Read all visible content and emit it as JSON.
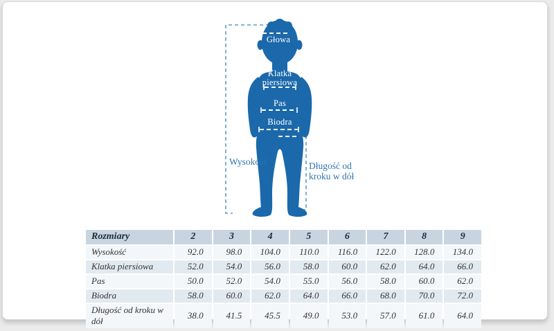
{
  "diagram": {
    "figure_color": "#1b69ab",
    "dash_blue": "#5b9bcd",
    "label_blue": "#2e75ad",
    "body_labels": {
      "head": "Głowa",
      "chest_line1": "Klatka",
      "chest_line2": "piersiowa",
      "waist": "Pas",
      "hips": "Biodra"
    },
    "measure_labels": {
      "height": "Wysokość",
      "inseam_line1": "Długość od",
      "inseam_line2": "kroku w dół"
    }
  },
  "table": {
    "header_label": "Rozmiary",
    "sizes": [
      "2",
      "3",
      "4",
      "5",
      "6",
      "7",
      "8",
      "9"
    ],
    "rows": [
      {
        "label": "Wysokość",
        "values": [
          "92.0",
          "98.0",
          "104.0",
          "110.0",
          "116.0",
          "122.0",
          "128.0",
          "134.0"
        ]
      },
      {
        "label": "Klatka piersiowa",
        "values": [
          "52.0",
          "54.0",
          "56.0",
          "58.0",
          "60.0",
          "62.0",
          "64.0",
          "66.0"
        ]
      },
      {
        "label": "Pas",
        "values": [
          "50.0",
          "52.0",
          "54.0",
          "55.0",
          "56.0",
          "58.0",
          "60.0",
          "62.0"
        ]
      },
      {
        "label": "Biodra",
        "values": [
          "58.0",
          "60.0",
          "62.0",
          "64.0",
          "66.0",
          "68.0",
          "70.0",
          "72.0"
        ]
      },
      {
        "label": "Długość od kroku w dół",
        "values": [
          "38.0",
          "41.5",
          "45.5",
          "49.0",
          "53.0",
          "57.0",
          "61.0",
          "64.0"
        ]
      }
    ]
  }
}
